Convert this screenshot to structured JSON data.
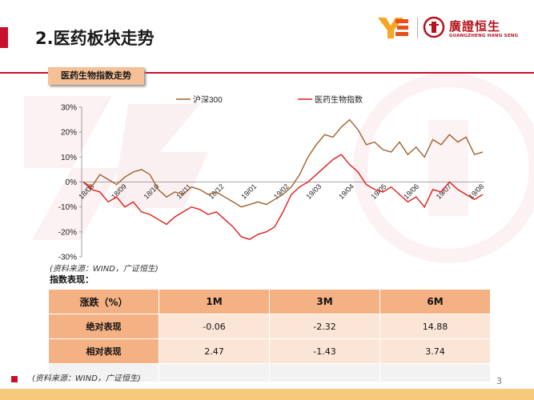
{
  "header": {
    "title": "2.医药板块走势",
    "logo_cn": "廣證恒生",
    "logo_en": "GUANGZHENG HANG SENG"
  },
  "section_label": "医药生物指数走势",
  "chart_data": {
    "type": "line",
    "title": "",
    "xlabel": "",
    "ylabel": "",
    "ylim": [
      -30,
      30
    ],
    "yticks": [
      "30%",
      "20%",
      "10%",
      "0%",
      "-10%",
      "-20%",
      "-30%"
    ],
    "xticks": [
      "18/08",
      "18/09",
      "18/10",
      "18/11",
      "18/12",
      "19/01",
      "19/02",
      "19/03",
      "19/04",
      "19/05",
      "19/06",
      "19/07",
      "19/08"
    ],
    "legend_position": "top",
    "series": [
      {
        "name": "沪深300",
        "color": "#a0622d",
        "values": [
          0,
          -2,
          3,
          1,
          -1,
          2,
          4,
          5,
          3,
          -3,
          -6,
          -4,
          -5,
          -2,
          -3,
          -5,
          -4,
          -6,
          -8,
          -10,
          -9,
          -8,
          -9,
          -7,
          -5,
          -2,
          3,
          10,
          15,
          19,
          18,
          22,
          25,
          21,
          15,
          16,
          13,
          12,
          16,
          11,
          14,
          10,
          17,
          15,
          19,
          16,
          18,
          11,
          12
        ]
      },
      {
        "name": "医药生物指数",
        "color": "#e21b1b",
        "values": [
          0,
          -3,
          -4,
          -8,
          -6,
          -10,
          -8,
          -12,
          -13,
          -15,
          -17,
          -14,
          -12,
          -10,
          -11,
          -13,
          -12,
          -15,
          -18,
          -22,
          -23,
          -21,
          -20,
          -18,
          -12,
          -5,
          -2,
          0,
          3,
          6,
          9,
          11,
          7,
          4,
          -1,
          -3,
          -4,
          -2,
          -5,
          -8,
          -6,
          -10,
          -3,
          -4,
          0,
          -3,
          -5,
          -7,
          -5
        ]
      }
    ]
  },
  "source_note_1": "(资料来源：WIND，广证恒生)",
  "performance_label": "指数表现：",
  "table": {
    "headers": [
      "涨跌（%）",
      "1M",
      "3M",
      "6M"
    ],
    "rows": [
      [
        "绝对表现",
        "-0.06",
        "-2.32",
        "14.88"
      ],
      [
        "相对表现",
        "2.47",
        "-1.43",
        "3.74"
      ]
    ]
  },
  "source_note_2": "(资料来源：WIND，广证恒生)",
  "page_number": "3"
}
